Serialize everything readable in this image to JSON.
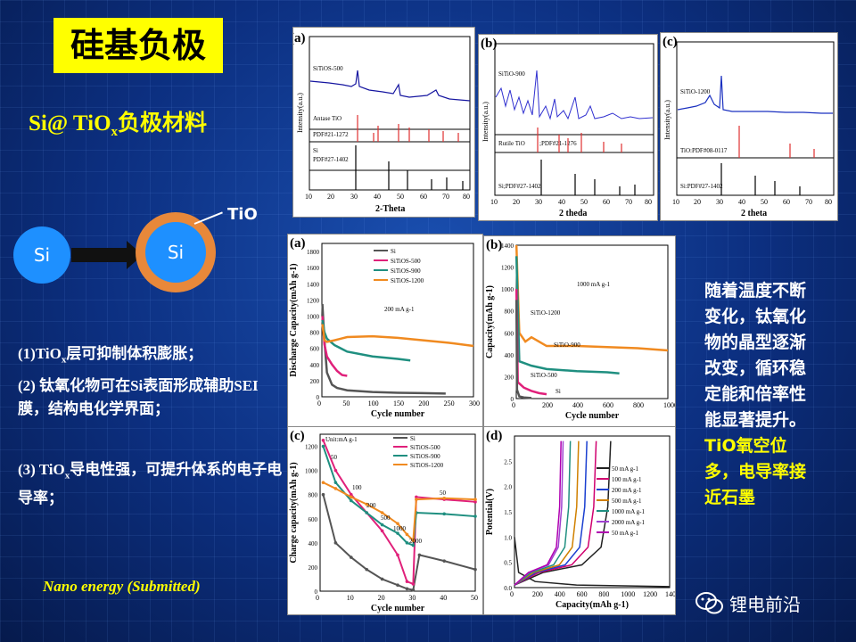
{
  "title": "硅基负极",
  "subtitle": {
    "prefix": "Si@ TiO",
    "sub": "x",
    "suffix": "负极材料"
  },
  "schematic": {
    "si_left": "Si",
    "si_core": "Si",
    "tio": "TiO"
  },
  "points": {
    "p1_a": "(1)TiO",
    "p1_sub": "x",
    "p1_b": "层可抑制体积膨胀；",
    "p2": "(2) 钛氧化物可在Si表面形成辅助SEI膜，结构电化学界面；",
    "p3_a": "(3) TiO",
    "p3_sub": "x",
    "p3_b": "导电性强，可提升体系的电子电导率；"
  },
  "citation": "Nano energy (Submitted)",
  "right_text": {
    "normal": "随着温度不断变化，钛氧化物的晶型逐渐改变，循环稳定能和倍率性能显著提升。",
    "highlight": "TiO氧空位多，电导率接近石墨"
  },
  "watermark": "锂电前沿",
  "colors": {
    "title_bg": "#ffff00",
    "accent": "#ffff00",
    "si_blue": "#1e90ff",
    "shell": "#e8883a",
    "si": "#555555",
    "s500": "#e0207a",
    "s900": "#1f8f80",
    "s1200": "#f08a20"
  },
  "xrd": {
    "a": {
      "label": "(a)",
      "xlabel": "2-Theta",
      "ylabel": "Intensity(a.u.)",
      "sample": "SiTiOS-500",
      "ref1": "Antase TiO",
      "ref1b": "PDF#21-1272",
      "ref2": "Si",
      "ref2b": "PDF#27-1402",
      "ticks": [
        "10",
        "20",
        "30",
        "40",
        "50",
        "60",
        "70",
        "80"
      ]
    },
    "b": {
      "label": "(b)",
      "xlabel": "2 theda",
      "ylabel": "Intensity(a.u.)",
      "sample": "SiTiO-900",
      "ref1": "Rutile TiO",
      "ref1b": ";PDF#21-1276",
      "ref2": "Si;PDF#27-1402",
      "ticks": [
        "10",
        "20",
        "30",
        "40",
        "50",
        "60",
        "70",
        "80"
      ]
    },
    "c": {
      "label": "(c)",
      "xlabel": "2 theta",
      "ylabel": "Intensity(a.u.)",
      "sample": "SiTiO-1200",
      "ref1": "TiO:PDF#08-0117",
      "ref2": "Si:PDF#27-1402",
      "ticks": [
        "10",
        "20",
        "30",
        "40",
        "50",
        "60",
        "70",
        "80"
      ]
    }
  },
  "chart_data": [
    {
      "type": "line",
      "label": "(a)",
      "title": "",
      "annotation": "200 mA g-1",
      "xlabel": "Cycle number",
      "ylabel": "Discharge Capacity(mAh g-1)",
      "xlim": [
        0,
        300
      ],
      "ylim": [
        0,
        1900
      ],
      "xticks": [
        "0",
        "50",
        "100",
        "150",
        "200",
        "250",
        "300"
      ],
      "yticks": [
        "0",
        "200",
        "400",
        "600",
        "800",
        "1000",
        "1200",
        "1400",
        "1600",
        "1800"
      ],
      "legend": [
        "Si",
        "SiTiOS-500",
        "SiTiOS-900",
        "SiTiOS-1200"
      ],
      "series": [
        {
          "name": "Si",
          "x": [
            1,
            5,
            10,
            20,
            30,
            50,
            100,
            150,
            200,
            245
          ],
          "y": [
            1150,
            700,
            300,
            150,
            110,
            80,
            60,
            50,
            45,
            40
          ]
        },
        {
          "name": "SiTiOS-500",
          "x": [
            1,
            5,
            10,
            20,
            30,
            40,
            50
          ],
          "y": [
            1000,
            650,
            500,
            400,
            320,
            270,
            260
          ]
        },
        {
          "name": "SiTiOS-900",
          "x": [
            1,
            5,
            10,
            25,
            50,
            100,
            150,
            175
          ],
          "y": [
            950,
            800,
            720,
            640,
            560,
            500,
            470,
            450
          ]
        },
        {
          "name": "SiTiOS-1200",
          "x": [
            1,
            5,
            10,
            25,
            50,
            100,
            150,
            200,
            250,
            300
          ],
          "y": [
            900,
            700,
            680,
            700,
            740,
            750,
            730,
            700,
            670,
            630
          ]
        }
      ]
    },
    {
      "type": "line",
      "label": "(b)",
      "annotation": "1000 mA g-1",
      "xlabel": "Cycle number",
      "ylabel": "Capacity(mAh g-1)",
      "xlim": [
        0,
        1000
      ],
      "ylim": [
        0,
        1400
      ],
      "xticks": [
        "0",
        "200",
        "400",
        "600",
        "800",
        "1000"
      ],
      "yticks": [
        "0",
        "200",
        "400",
        "600",
        "800",
        "1000",
        "1200",
        "1400"
      ],
      "series_labels": [
        "SiTiO-1200",
        "SiTiO-900",
        "SiTiO-500",
        "Si"
      ],
      "series": [
        {
          "name": "SiTiO-1200",
          "x": [
            1,
            20,
            60,
            100,
            200,
            400,
            600,
            800,
            1000
          ],
          "y": [
            1400,
            600,
            520,
            560,
            480,
            480,
            470,
            460,
            440
          ]
        },
        {
          "name": "SiTiO-900",
          "x": [
            1,
            20,
            60,
            100,
            200,
            400,
            600,
            680
          ],
          "y": [
            1300,
            340,
            320,
            300,
            270,
            250,
            240,
            230
          ]
        },
        {
          "name": "SiTiO-500",
          "x": [
            1,
            10,
            50,
            100,
            150,
            200
          ],
          "y": [
            1000,
            150,
            100,
            70,
            50,
            40
          ]
        },
        {
          "name": "Si",
          "x": [
            1,
            5,
            20,
            50,
            100
          ],
          "y": [
            900,
            80,
            20,
            10,
            5
          ]
        }
      ]
    },
    {
      "type": "line",
      "label": "(c)",
      "annotation": "Unit:mA g-1",
      "xlabel": "Cycle number",
      "ylabel": "Charge capacity(mAh g-1)",
      "xlim": [
        0,
        50
      ],
      "ylim": [
        0,
        1300
      ],
      "xticks": [
        "0",
        "10",
        "20",
        "30",
        "40",
        "50"
      ],
      "yticks": [
        "0",
        "200",
        "400",
        "600",
        "800",
        "1000",
        "1200"
      ],
      "legend": [
        "Si",
        "SiTiOS-500",
        "SiTiOS-900",
        "SiTiOS-1200"
      ],
      "rate_labels": [
        "50",
        "100",
        "200",
        "500",
        "1000",
        "2000",
        "50"
      ],
      "series": [
        {
          "name": "Si",
          "x": [
            1,
            5,
            10,
            15,
            20,
            25,
            28,
            30,
            32,
            40,
            50
          ],
          "y": [
            800,
            400,
            280,
            180,
            100,
            50,
            20,
            10,
            300,
            250,
            180
          ]
        },
        {
          "name": "SiTiOS-500",
          "x": [
            1,
            5,
            10,
            15,
            20,
            25,
            28,
            30,
            31,
            40,
            50
          ],
          "y": [
            1250,
            1000,
            800,
            650,
            500,
            300,
            80,
            60,
            780,
            760,
            740
          ]
        },
        {
          "name": "SiTiOS-900",
          "x": [
            1,
            5,
            10,
            15,
            20,
            25,
            28,
            30,
            31,
            40,
            50
          ],
          "y": [
            1200,
            900,
            750,
            650,
            550,
            480,
            400,
            380,
            650,
            640,
            620
          ]
        },
        {
          "name": "SiTiOS-1200",
          "x": [
            1,
            5,
            10,
            15,
            20,
            25,
            28,
            30,
            31,
            40,
            50
          ],
          "y": [
            900,
            850,
            780,
            720,
            650,
            560,
            470,
            420,
            760,
            770,
            760
          ]
        }
      ]
    },
    {
      "type": "line",
      "label": "(d)",
      "xlabel": "Capacity(mAh g-1)",
      "ylabel": "Potential(V)",
      "xlim": [
        0,
        1500
      ],
      "ylim": [
        0,
        3.0
      ],
      "xticks": [
        "0",
        "200",
        "400",
        "600",
        "800",
        "1000",
        "1200",
        "1400"
      ],
      "yticks": [
        "0.0",
        "0.5",
        "1.0",
        "1.5",
        "2.0",
        "2.5"
      ],
      "legend": [
        "50 mA g-1",
        "100 mA g-1",
        "200 mA g-1",
        "500 mA g-1",
        "1000 mA g-1",
        "2000 mA g-1",
        "50 mA g-1"
      ],
      "legend_colors": [
        "#222222",
        "#d0006f",
        "#1a3fd0",
        "#d08000",
        "#1f8f80",
        "#a040d0",
        "#b000b0"
      ],
      "charge_end_capacity": [
        930,
        790,
        700,
        620,
        540,
        470,
        450
      ]
    }
  ]
}
